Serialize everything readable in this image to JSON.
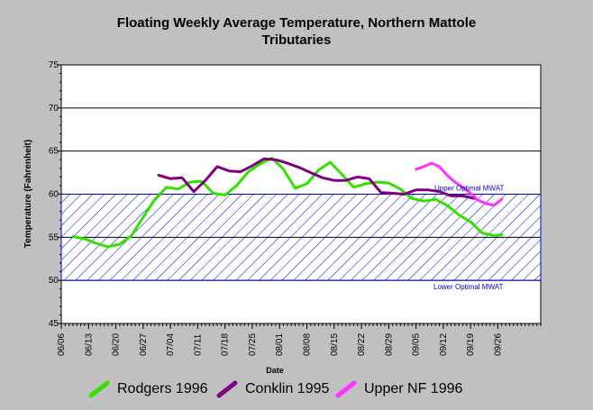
{
  "chart_data": {
    "type": "line",
    "title_line1": "Floating Weekly Average Temperature, Northern Mattole",
    "title_line2": "Tributaries",
    "xlabel": "Date",
    "ylabel": "Temperature (Fahrenheit)",
    "ylim": [
      45,
      75
    ],
    "yticks": [
      45,
      50,
      55,
      60,
      65,
      70,
      75
    ],
    "xlim": [
      "06/06",
      "10/07"
    ],
    "xticks": [
      "06/06",
      "06/13",
      "06/20",
      "06/27",
      "07/04",
      "07/11",
      "07/18",
      "07/25",
      "08/01",
      "08/08",
      "08/15",
      "08/22",
      "08/29",
      "09/05",
      "09/12",
      "09/19",
      "09/26"
    ],
    "grid": "horizontal",
    "optimal_band": {
      "upper": 60,
      "lower": 50,
      "upper_label": "Upper Optimal MWAT",
      "lower_label": "Lower Optimal MWAT",
      "color": "#0000cc"
    },
    "series": [
      {
        "name": "Rodgers 1996",
        "color": "#33e000",
        "x": [
          "06/09",
          "06/12",
          "06/15",
          "06/18",
          "06/21",
          "06/24",
          "06/27",
          "06/30",
          "07/03",
          "07/06",
          "07/09",
          "07/12",
          "07/15",
          "07/18",
          "07/21",
          "07/24",
          "07/27",
          "07/30",
          "08/02",
          "08/05",
          "08/08",
          "08/11",
          "08/14",
          "08/17",
          "08/20",
          "08/23",
          "08/26",
          "08/29",
          "09/01",
          "09/04",
          "09/07",
          "09/10",
          "09/13",
          "09/16",
          "09/19",
          "09/22",
          "09/25",
          "09/27"
        ],
        "values": [
          55.1,
          54.8,
          54.3,
          53.9,
          54.2,
          55.2,
          57.3,
          59.4,
          60.8,
          60.6,
          61.4,
          61.5,
          60.1,
          59.9,
          61.0,
          62.6,
          63.5,
          64.2,
          62.9,
          60.7,
          61.2,
          62.8,
          63.7,
          62.3,
          60.8,
          61.2,
          61.4,
          61.3,
          60.6,
          59.5,
          59.2,
          59.4,
          58.7,
          57.6,
          56.8,
          55.5,
          55.2,
          55.3
        ]
      },
      {
        "name": "Conklin 1995",
        "color": "#800080",
        "x": [
          "07/01",
          "07/04",
          "07/07",
          "07/10",
          "07/13",
          "07/16",
          "07/19",
          "07/22",
          "07/25",
          "07/28",
          "07/31",
          "08/03",
          "08/06",
          "08/09",
          "08/12",
          "08/15",
          "08/18",
          "08/21",
          "08/24",
          "08/27",
          "08/30",
          "09/02",
          "09/05",
          "09/08",
          "09/11",
          "09/14",
          "09/17",
          "09/20"
        ],
        "values": [
          62.2,
          61.8,
          61.9,
          60.3,
          61.6,
          63.2,
          62.7,
          62.6,
          63.3,
          64.1,
          64.0,
          63.6,
          63.1,
          62.5,
          61.9,
          61.6,
          61.6,
          62.0,
          61.8,
          60.2,
          60.1,
          60.0,
          60.5,
          60.5,
          60.3,
          59.8,
          59.8,
          59.5
        ]
      },
      {
        "name": "Upper NF 1996",
        "color": "#ff33ff",
        "x": [
          "09/05",
          "09/07",
          "09/09",
          "09/11",
          "09/13",
          "09/15",
          "09/17",
          "09/19",
          "09/21",
          "09/23",
          "09/25",
          "09/27"
        ],
        "values": [
          62.9,
          63.2,
          63.6,
          63.2,
          62.2,
          61.4,
          60.8,
          60.1,
          59.3,
          58.9,
          58.7,
          59.4
        ]
      }
    ]
  }
}
